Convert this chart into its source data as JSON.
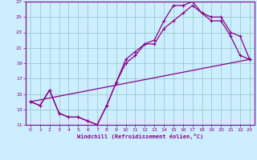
{
  "xlabel": "Windchill (Refroidissement éolien,°C)",
  "bg_color": "#cceeff",
  "line_color": "#880088",
  "grid_color": "#99cccc",
  "xlim": [
    -0.5,
    23.5
  ],
  "ylim": [
    11,
    27
  ],
  "xticks": [
    0,
    1,
    2,
    3,
    4,
    5,
    6,
    7,
    8,
    9,
    10,
    11,
    12,
    13,
    14,
    15,
    16,
    17,
    18,
    19,
    20,
    21,
    22,
    23
  ],
  "yticks": [
    11,
    13,
    15,
    17,
    19,
    21,
    23,
    25,
    27
  ],
  "line1_x": [
    0,
    1,
    2,
    3,
    4,
    5,
    6,
    7,
    8,
    9,
    10,
    11,
    12,
    13,
    14,
    15,
    16,
    17,
    18,
    19,
    20,
    21,
    22,
    23
  ],
  "line1_y": [
    14.0,
    13.5,
    15.5,
    12.5,
    12.0,
    12.0,
    11.5,
    11.0,
    13.5,
    16.5,
    19.5,
    20.5,
    21.5,
    22.0,
    24.5,
    26.5,
    26.5,
    27.0,
    25.5,
    24.5,
    24.5,
    22.5,
    20.0,
    19.5
  ],
  "line2_x": [
    0,
    1,
    2,
    3,
    4,
    5,
    6,
    7,
    8,
    9,
    10,
    11,
    12,
    13,
    14,
    15,
    16,
    17,
    18,
    19,
    20,
    21,
    22,
    23
  ],
  "line2_y": [
    14.0,
    13.5,
    15.5,
    12.5,
    12.0,
    12.0,
    11.5,
    11.0,
    13.5,
    16.5,
    19.0,
    20.0,
    21.5,
    21.5,
    23.5,
    24.5,
    25.5,
    26.5,
    25.5,
    25.0,
    25.0,
    23.0,
    22.5,
    19.5
  ],
  "line3_x": [
    0,
    23
  ],
  "line3_y": [
    14.0,
    19.5
  ],
  "marker": "+"
}
